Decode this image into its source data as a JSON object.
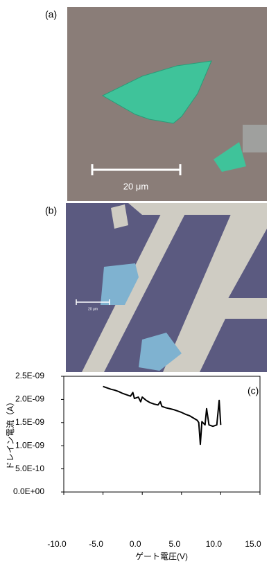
{
  "panels": [
    {
      "label": "(a)",
      "scale_bar": "20 μm"
    },
    {
      "label": "(b)",
      "scale_bar": "20 μm"
    }
  ],
  "chart_data": {
    "type": "line",
    "annotation": "(c)",
    "x_label": "ゲート電圧(V)",
    "y_label": "ドレイン電流（A）",
    "x": [
      -5,
      -4.5,
      -4,
      -3.5,
      -3,
      -2.5,
      -2,
      -1.5,
      -1.2,
      -1,
      -0.5,
      -0.2,
      0,
      0.5,
      1,
      1.5,
      2,
      2.3,
      2.5,
      3,
      3.5,
      4,
      4.5,
      5,
      5.5,
      6,
      6.5,
      7,
      7.2,
      7.4,
      7.6,
      8,
      8.2,
      8.5,
      9,
      9.5,
      9.8,
      10
    ],
    "series": [
      {
        "color": "#000000",
        "values": [
          2.28e-09,
          2.25e-09,
          2.22e-09,
          2.2e-09,
          2.17e-09,
          2.13e-09,
          2.1e-09,
          2.07e-09,
          2.15e-09,
          2.02e-09,
          2.05e-09,
          1.95e-09,
          2.05e-09,
          1.98e-09,
          1.93e-09,
          1.9e-09,
          1.88e-09,
          1.95e-09,
          1.85e-09,
          1.82e-09,
          1.8e-09,
          1.78e-09,
          1.75e-09,
          1.72e-09,
          1.68e-09,
          1.65e-09,
          1.6e-09,
          1.55e-09,
          1.5e-09,
          1.03e-09,
          1.52e-09,
          1.45e-09,
          1.8e-09,
          1.45e-09,
          1.42e-09,
          1.45e-09,
          1.98e-09,
          1.45e-09
        ]
      }
    ],
    "xlim": [
      -10,
      15
    ],
    "xticks": [
      {
        "value": -10,
        "label": "-10.0"
      },
      {
        "value": -5,
        "label": "-5.0"
      },
      {
        "value": 0,
        "label": "0.0"
      },
      {
        "value": 5,
        "label": "5.0"
      },
      {
        "value": 10,
        "label": "10.0"
      },
      {
        "value": 15,
        "label": "15.0"
      }
    ],
    "ylim": [
      0,
      2.5e-09
    ],
    "yticks": [
      {
        "value": 0,
        "label": "0.0E+00"
      },
      {
        "value": 5e-10,
        "label": "5.0E-10"
      },
      {
        "value": 1e-09,
        "label": "1.0E-09"
      },
      {
        "value": 1.5e-09,
        "label": "1.5E-09"
      },
      {
        "value": 2e-09,
        "label": "2.0E-09"
      },
      {
        "value": 2.5e-09,
        "label": "2.5E-09"
      }
    ]
  }
}
